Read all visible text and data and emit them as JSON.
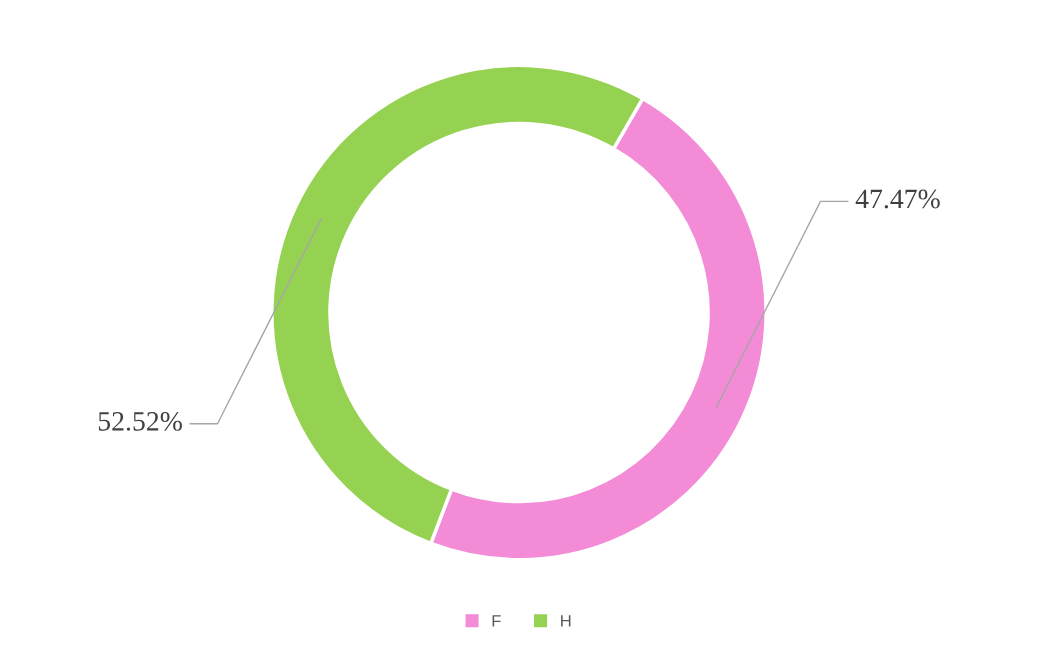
{
  "chart_data": {
    "type": "donut",
    "categories": [
      "F",
      "H"
    ],
    "values": [
      47.47,
      52.52
    ],
    "colors": [
      "#f38bd6",
      "#95d251"
    ],
    "value_labels": [
      "47.47%",
      "52.52%"
    ],
    "legend": "bottom"
  }
}
